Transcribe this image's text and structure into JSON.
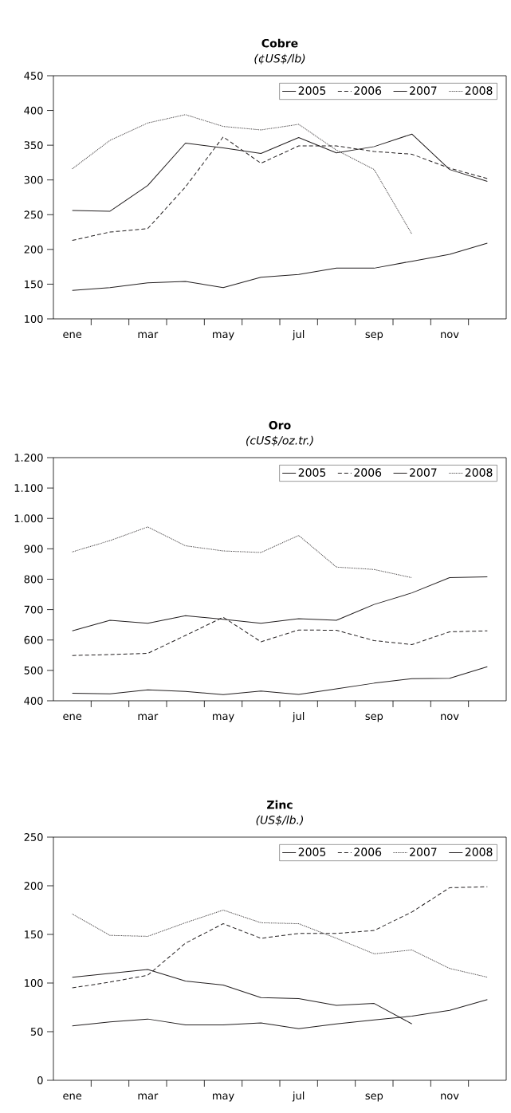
{
  "chart_data": [
    {
      "type": "line",
      "title": "Cobre",
      "subtitle": "(¢US$/lb)",
      "categories": [
        "ene",
        null,
        "mar",
        null,
        "may",
        null,
        "jul",
        null,
        "sep",
        null,
        "nov",
        null
      ],
      "ylim": [
        100,
        450
      ],
      "yticks": [
        100,
        150,
        200,
        250,
        300,
        350,
        400,
        450
      ],
      "legend": "top right",
      "marker": "none",
      "series": [
        {
          "name": "2005",
          "color": "#231f20",
          "line_style": "solid",
          "values": [
            141,
            145,
            152,
            154,
            145,
            160,
            164,
            173,
            173,
            183,
            193,
            209
          ]
        },
        {
          "name": "2006",
          "color": "#231f20",
          "line_style": "dashed",
          "values": [
            213,
            225,
            230,
            290,
            362,
            324,
            349,
            349,
            341,
            337,
            317,
            302
          ]
        },
        {
          "name": "2007",
          "color": "#231f20",
          "line_style": "solid",
          "values": [
            256,
            255,
            292,
            353,
            346,
            338,
            361,
            339,
            348,
            366,
            315,
            298
          ]
        },
        {
          "name": "2008",
          "color": "#231f20",
          "line_style": "dotted",
          "values": [
            316,
            357,
            382,
            394,
            377,
            372,
            380,
            343,
            315,
            222,
            null,
            null
          ]
        }
      ]
    },
    {
      "type": "line",
      "title": "Oro",
      "subtitle": "(cUS$/oz.tr.)",
      "categories": [
        "ene",
        null,
        "mar",
        null,
        "may",
        null,
        "jul",
        null,
        "sep",
        null,
        "nov",
        null
      ],
      "ylim": [
        400,
        1200
      ],
      "yticks": [
        400,
        500,
        600,
        700,
        800,
        900,
        {
          "value": 1000,
          "label": "1.000"
        },
        {
          "value": 1100,
          "label": "1.100"
        },
        {
          "value": 1200,
          "label": "1.200"
        }
      ],
      "legend": "top right",
      "marker": "none",
      "series": [
        {
          "name": "2005",
          "color": "#231f20",
          "line_style": "solid",
          "values": [
            425,
            423,
            436,
            431,
            420,
            432,
            421,
            439,
            458,
            473,
            474,
            512
          ]
        },
        {
          "name": "2006",
          "color": "#231f20",
          "line_style": "dashed",
          "values": [
            549,
            552,
            556,
            615,
            675,
            594,
            633,
            632,
            598,
            585,
            627,
            630
          ]
        },
        {
          "name": "2007",
          "color": "#231f20",
          "line_style": "solid",
          "values": [
            630,
            665,
            655,
            680,
            668,
            655,
            670,
            665,
            717,
            755,
            805,
            808
          ]
        },
        {
          "name": "2008",
          "color": "#231f20",
          "line_style": "dotted",
          "values": [
            890,
            927,
            972,
            910,
            893,
            888,
            944,
            840,
            832,
            805,
            null,
            null
          ]
        }
      ]
    },
    {
      "type": "line",
      "title": "Zinc",
      "subtitle": "(US$/lb.)",
      "categories": [
        "ene",
        null,
        "mar",
        null,
        "may",
        null,
        "jul",
        null,
        "sep",
        null,
        "nov",
        null
      ],
      "ylim": [
        0,
        250
      ],
      "yticks": [
        0,
        50,
        100,
        150,
        200,
        250
      ],
      "legend": "top right",
      "marker": "none",
      "series": [
        {
          "name": "2005",
          "color": "#231f20",
          "line_style": "solid",
          "values": [
            56,
            60,
            63,
            57,
            57,
            59,
            53,
            58,
            62,
            66,
            72,
            83
          ]
        },
        {
          "name": "2006",
          "color": "#231f20",
          "line_style": "dashed",
          "values": [
            95,
            101,
            108,
            141,
            161,
            146,
            151,
            151,
            154,
            173,
            198,
            199
          ]
        },
        {
          "name": "2007",
          "color": "#231f20",
          "line_style": "dotted",
          "values": [
            171,
            149,
            148,
            162,
            175,
            162,
            161,
            146,
            130,
            134,
            115,
            106
          ]
        },
        {
          "name": "2008",
          "color": "#231f20",
          "line_style": "solid",
          "values": [
            106,
            110,
            114,
            102,
            98,
            85,
            84,
            77,
            79,
            58,
            null,
            null
          ]
        }
      ]
    }
  ]
}
